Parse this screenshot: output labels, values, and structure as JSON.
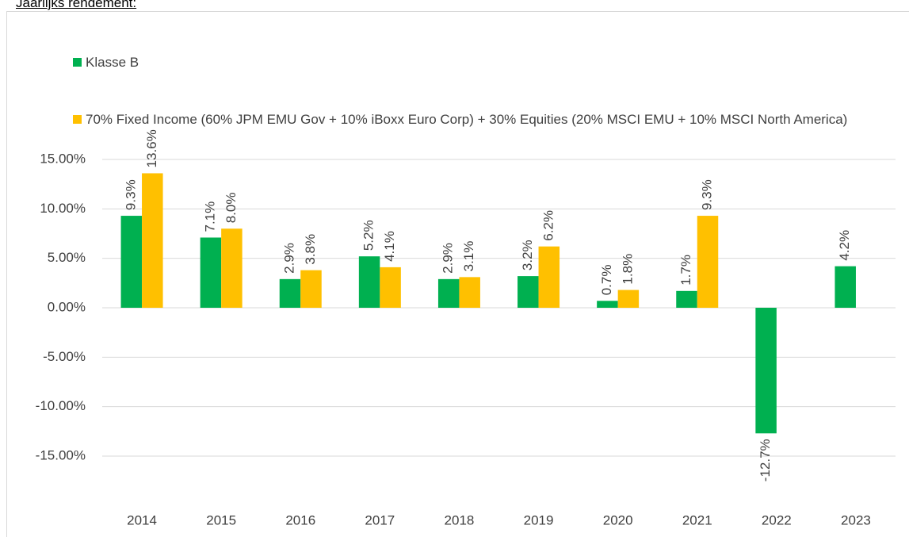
{
  "chart_data": {
    "type": "bar",
    "title": "Jaarlijks rendement:",
    "categories": [
      "2014",
      "2015",
      "2016",
      "2017",
      "2018",
      "2019",
      "2020",
      "2021",
      "2022",
      "2023"
    ],
    "series": [
      {
        "name": "Klasse B",
        "color": "#00b050",
        "values": [
          9.3,
          7.1,
          2.9,
          5.2,
          2.9,
          3.2,
          0.7,
          1.7,
          -12.7,
          4.2
        ],
        "value_labels": [
          "9.3%",
          "7.1%",
          "2.9%",
          "5.2%",
          "2.9%",
          "3.2%",
          "0.7%",
          "1.7%",
          "-12.7%",
          "4.2%"
        ]
      },
      {
        "name": "70% Fixed Income (60% JPM EMU Gov + 10% iBoxx Euro Corp) + 30% Equities (20% MSCI EMU + 10% MSCI North America)",
        "color": "#ffc000",
        "values": [
          13.6,
          8.0,
          3.8,
          4.1,
          3.1,
          6.2,
          1.8,
          9.3,
          null,
          null
        ],
        "value_labels": [
          "13.6%",
          "8.0%",
          "3.8%",
          "4.1%",
          "3.1%",
          "6.2%",
          "1.8%",
          "9.3%",
          null,
          null
        ]
      }
    ],
    "ylim": [
      -20,
      15
    ],
    "yticks": [
      {
        "value": -15,
        "label": "-15.00%"
      },
      {
        "value": -10,
        "label": "-10.00%"
      },
      {
        "value": -5,
        "label": "-5.00%"
      },
      {
        "value": 0,
        "label": "0.00%"
      },
      {
        "value": 5,
        "label": "5.00%"
      },
      {
        "value": 10,
        "label": "10.00%"
      },
      {
        "value": 15,
        "label": "15.00%"
      }
    ],
    "grid": true
  }
}
